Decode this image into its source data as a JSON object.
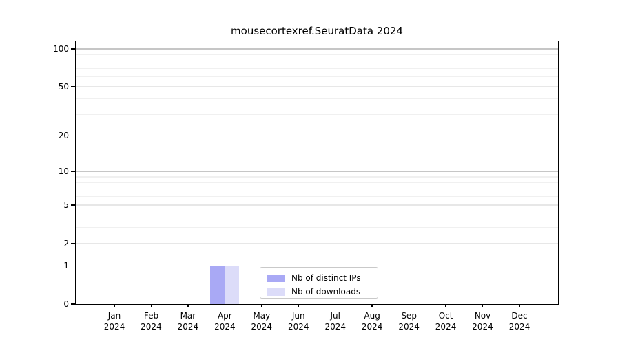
{
  "title": "mousecortexref.SeuratData 2024",
  "chart_data": {
    "type": "bar",
    "title": "mousecortexref.SeuratData 2024",
    "y_scale": "log10(1+y)",
    "ylim": [
      0,
      115
    ],
    "grid": true,
    "categories": [
      "Jan 2024",
      "Feb 2024",
      "Mar 2024",
      "Apr 2024",
      "May 2024",
      "Jun 2024",
      "Jul 2024",
      "Aug 2024",
      "Sep 2024",
      "Oct 2024",
      "Nov 2024",
      "Dec 2024"
    ],
    "series": [
      {
        "name": "Nb of distinct IPs",
        "color": "#a9a9f5",
        "values": [
          0,
          0,
          0,
          1,
          0,
          0,
          0,
          0,
          0,
          0,
          0,
          0
        ]
      },
      {
        "name": "Nb of downloads",
        "color": "#dcdcf9",
        "values": [
          0,
          0,
          0,
          1,
          0,
          0,
          0,
          0,
          0,
          0,
          0,
          0
        ]
      }
    ],
    "y_ticks_labeled": [
      0,
      1,
      2,
      5,
      10,
      20,
      50,
      100
    ],
    "y_grid_major": [
      1,
      10,
      100
    ],
    "y_grid_labeled": [
      2,
      5,
      20,
      50
    ],
    "y_grid_minor": [
      3,
      4,
      6,
      7,
      8,
      9,
      30,
      40,
      60,
      70,
      80,
      90
    ],
    "legend": {
      "position": "lower center",
      "entries": [
        "Nb of distinct IPs",
        "Nb of downloads"
      ]
    }
  },
  "colors": {
    "spine": "#000000",
    "grid_major": "#c6c6c6",
    "grid_labeled": "#e7e7e7",
    "grid_minor": "#f0f0f0",
    "bar_distinct_ips": "#a9a9f5",
    "bar_downloads": "#dcdcf9",
    "legend_border": "#c9c9c9"
  }
}
